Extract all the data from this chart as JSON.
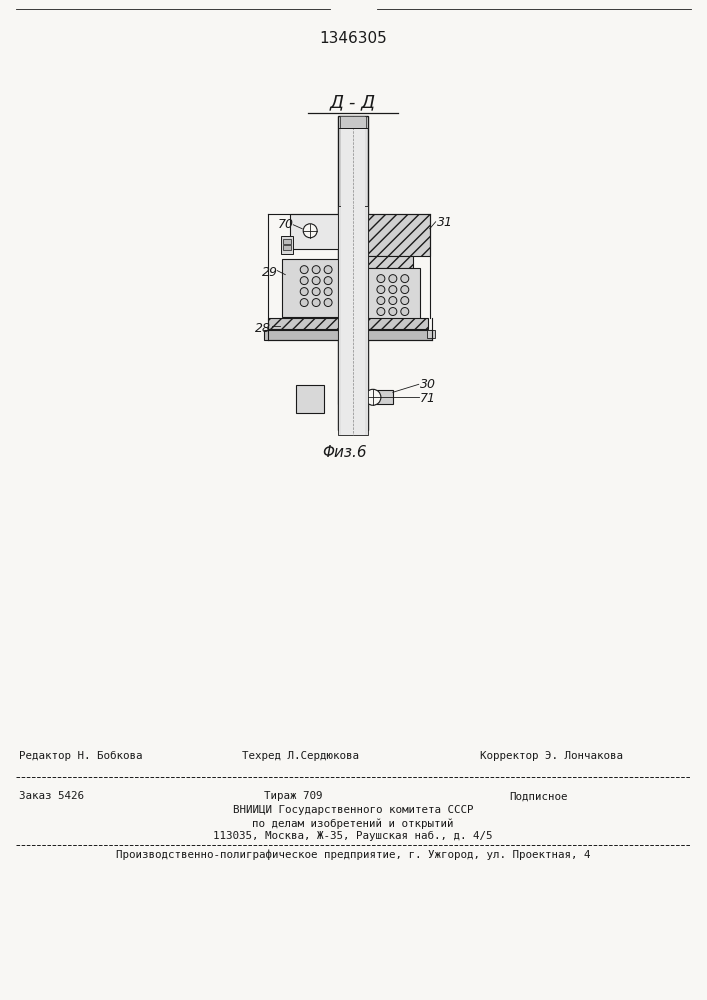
{
  "patent_number": "1346305",
  "section_label": "Д - Д",
  "fig_label": "Φиз.6",
  "bg_color": "#f8f7f4",
  "line_color": "#1a1a1a",
  "footer_editor": "Редактор Н. Бобкова",
  "footer_techred": "Техред Л.Сердюкова",
  "footer_corrector": "Корректор Э. Лончакова",
  "footer_order": "Заказ 5426",
  "footer_tirazh": "Тираж 709",
  "footer_podpis": "Подписное",
  "footer_vniigi": "ВНИИЦИ Государственного комитета СССР",
  "footer_po_delam": "по делам изобретений и открытий",
  "footer_address": "113035, Москва, Ж-35, Раушская наб., д. 4/5",
  "footer_factory": "Производственно-полиграфическое предприятие, г. Ужгород, ул. Проектная, 4"
}
